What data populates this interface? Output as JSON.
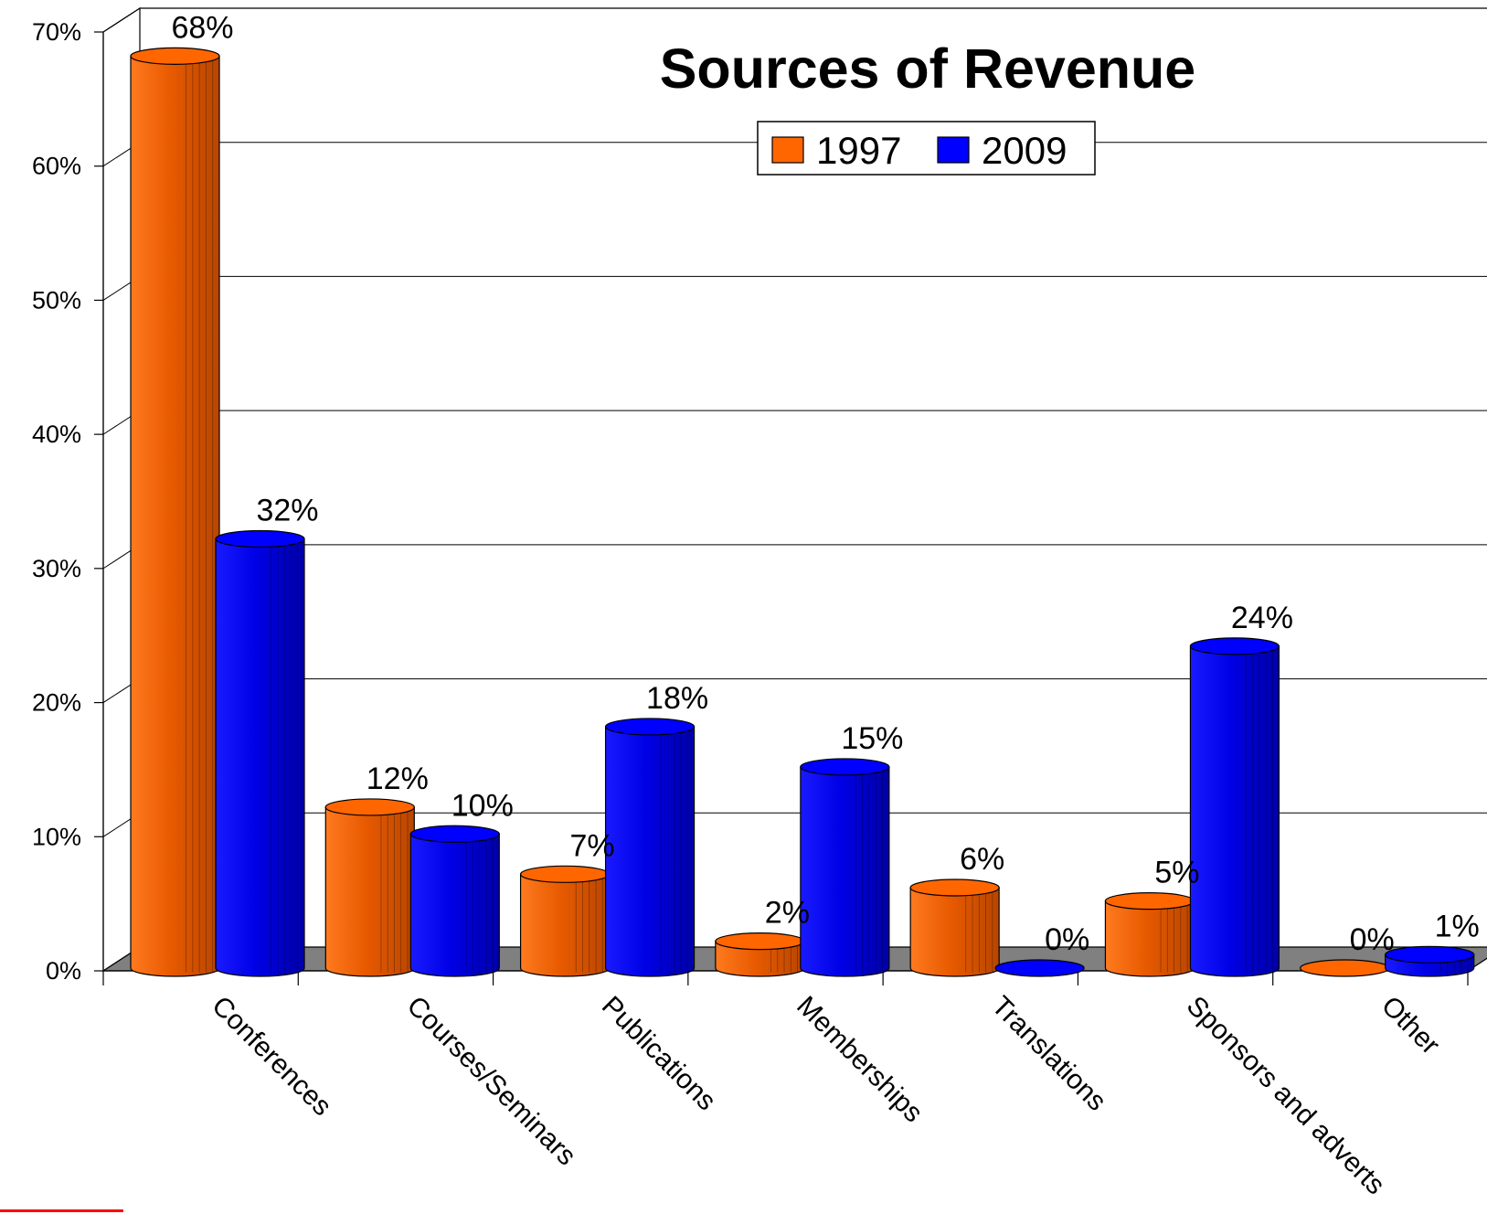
{
  "colors": {
    "series_1997": "#FF6600",
    "series_2009": "#0000FF",
    "floor": "#808080",
    "accent_mark": "#FF0000"
  },
  "chart_data": {
    "type": "bar",
    "title": "Sources of Revenue",
    "xlabel": "",
    "ylabel": "",
    "ylim": [
      0,
      70
    ],
    "yticks": [
      "0%",
      "10%",
      "20%",
      "30%",
      "40%",
      "50%",
      "60%",
      "70%"
    ],
    "categories": [
      "Conferences",
      "Courses/Seminars",
      "Publications",
      "Memberships",
      "Translations",
      "Sponsors and adverts",
      "Other"
    ],
    "series": [
      {
        "name": "1997",
        "values": [
          68,
          12,
          7,
          2,
          6,
          5,
          0
        ],
        "labels": [
          "68%",
          "12%",
          "7%",
          "2%",
          "6%",
          "5%",
          "0%"
        ]
      },
      {
        "name": "2009",
        "values": [
          32,
          10,
          18,
          15,
          0,
          24,
          1
        ],
        "labels": [
          "32%",
          "10%",
          "18%",
          "15%",
          "0%",
          "24%",
          "1%"
        ]
      }
    ],
    "legend": "top-center",
    "grid": true,
    "style": "3d-cylinder"
  }
}
